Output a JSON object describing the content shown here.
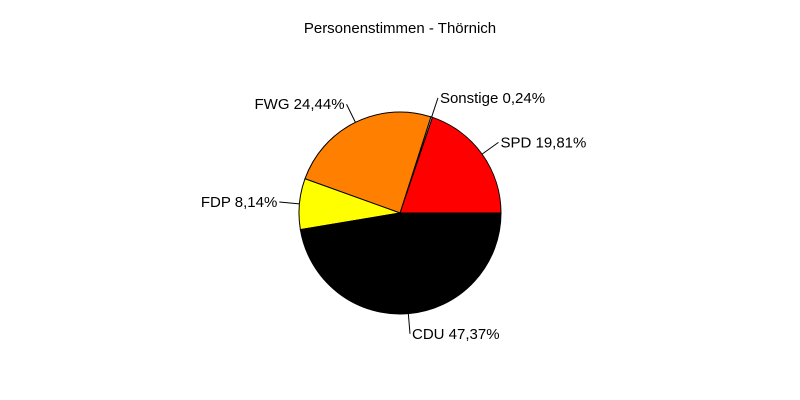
{
  "chart_data": {
    "type": "pie",
    "title": "Personenstimmen - Thörnich",
    "slices": [
      {
        "name": "SPD",
        "label": "SPD 19,81%",
        "value": 19.81,
        "color": "#ff0000"
      },
      {
        "name": "Sonstige",
        "label": "Sonstige 0,24%",
        "value": 0.24,
        "color": "#ffffff"
      },
      {
        "name": "FWG",
        "label": "FWG 24,44%",
        "value": 24.44,
        "color": "#ff7f00"
      },
      {
        "name": "FDP",
        "label": "FDP 8,14%",
        "value": 8.14,
        "color": "#ffff00"
      },
      {
        "name": "CDU",
        "label": "CDU 47,37%",
        "value": 47.37,
        "color": "#000000"
      }
    ]
  }
}
